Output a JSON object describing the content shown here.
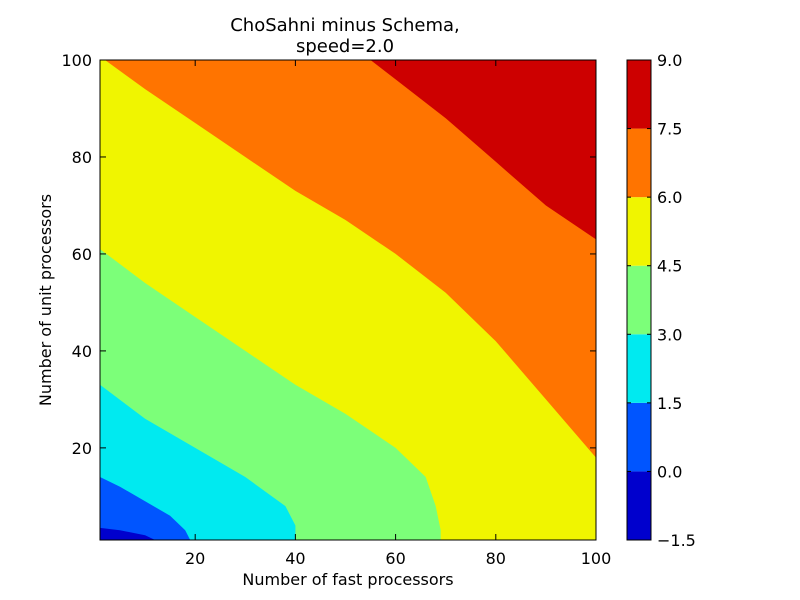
{
  "chart_data": {
    "type": "heatmap",
    "subtype": "filled-contour",
    "title_lines": [
      "ChoSahni minus Schema,",
      "speed=2.0"
    ],
    "xlabel": "Number of fast processors",
    "ylabel": "Number of unit processors",
    "xlim": [
      1,
      100
    ],
    "ylim": [
      1,
      100
    ],
    "xticks": [
      20,
      40,
      60,
      80,
      100
    ],
    "yticks": [
      20,
      40,
      60,
      80,
      100
    ],
    "colorbar": {
      "levels": [
        -1.5,
        0.0,
        1.5,
        3.0,
        4.5,
        6.0,
        7.5,
        9.0
      ],
      "level_labels": [
        "−1.5",
        "0.0",
        "1.5",
        "3.0",
        "4.5",
        "6.0",
        "7.5",
        "9.0"
      ],
      "colors": [
        "#0000cd",
        "#0055ff",
        "#00eaf0",
        "#7cff79",
        "#f0f500",
        "#ff7400",
        "#cd0000"
      ]
    },
    "contour_boundaries": [
      {
        "level": 0.0,
        "points": [
          [
            1,
            3.5
          ],
          [
            5,
            3
          ],
          [
            10,
            2
          ],
          [
            12,
            1
          ]
        ]
      },
      {
        "level": 1.5,
        "points": [
          [
            1,
            14
          ],
          [
            5,
            12
          ],
          [
            10,
            9
          ],
          [
            15,
            6
          ],
          [
            18,
            3
          ],
          [
            19,
            1
          ]
        ]
      },
      {
        "level": 3.0,
        "points": [
          [
            1,
            33
          ],
          [
            10,
            26
          ],
          [
            20,
            20
          ],
          [
            30,
            14
          ],
          [
            38,
            8
          ],
          [
            40,
            4
          ],
          [
            40,
            1
          ]
        ]
      },
      {
        "level": 4.5,
        "points": [
          [
            1,
            61
          ],
          [
            10,
            54
          ],
          [
            20,
            47
          ],
          [
            30,
            40
          ],
          [
            40,
            33
          ],
          [
            50,
            27
          ],
          [
            60,
            20
          ],
          [
            66,
            14
          ],
          [
            68,
            8
          ],
          [
            69,
            3
          ],
          [
            69,
            1
          ]
        ]
      },
      {
        "level": 6.0,
        "points": [
          [
            2,
            100
          ],
          [
            10,
            94
          ],
          [
            20,
            87
          ],
          [
            30,
            80
          ],
          [
            40,
            73
          ],
          [
            50,
            67
          ],
          [
            60,
            60
          ],
          [
            70,
            52
          ],
          [
            80,
            42
          ],
          [
            90,
            30
          ],
          [
            100,
            18
          ]
        ]
      },
      {
        "level": 7.5,
        "points": [
          [
            55,
            100
          ],
          [
            60,
            96
          ],
          [
            70,
            88
          ],
          [
            80,
            79
          ],
          [
            90,
            70
          ],
          [
            100,
            63
          ]
        ]
      }
    ]
  }
}
